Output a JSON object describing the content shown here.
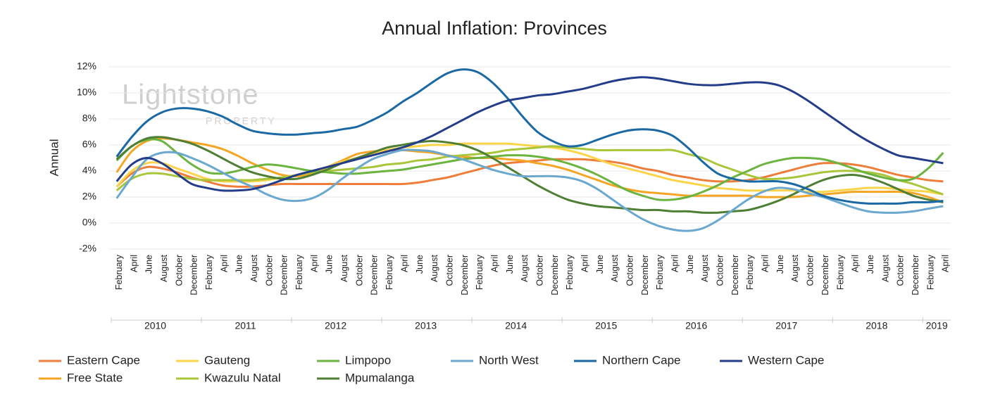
{
  "chart_data": {
    "type": "line",
    "title": "Annual Inflation: Provinces",
    "ylabel": "Annual",
    "watermark": [
      "Lightstone",
      "PROPERTY"
    ],
    "years": [
      "2010",
      "2011",
      "2012",
      "2013",
      "2014",
      "2015",
      "2016",
      "2017",
      "2018",
      "2019"
    ],
    "categories": [
      "February",
      "April",
      "June",
      "August",
      "October",
      "December",
      "February",
      "April",
      "June",
      "August",
      "October",
      "December",
      "February",
      "April",
      "June",
      "August",
      "October",
      "December",
      "February",
      "April",
      "June",
      "August",
      "October",
      "December",
      "February",
      "April",
      "June",
      "August",
      "October",
      "December",
      "February",
      "April",
      "June",
      "August",
      "October",
      "December",
      "February",
      "April",
      "June",
      "August",
      "October",
      "December",
      "February",
      "April",
      "June",
      "August",
      "October",
      "December",
      "February",
      "April",
      "June",
      "August",
      "October",
      "December",
      "February",
      "April"
    ],
    "ylim": [
      -2,
      12
    ],
    "yticks": [
      {
        "value": -2,
        "label": "-2%"
      },
      {
        "value": 0,
        "label": "0%"
      },
      {
        "value": 2,
        "label": "2%"
      },
      {
        "value": 4,
        "label": "4%"
      },
      {
        "value": 6,
        "label": "6%"
      },
      {
        "value": 8,
        "label": "8%"
      },
      {
        "value": 10,
        "label": "10%"
      },
      {
        "value": 12,
        "label": "12%"
      }
    ],
    "grid": true,
    "legend": "bottom",
    "series": [
      {
        "name": "Eastern Cape",
        "color": "#ef7d3a",
        "values": [
          2.8,
          3.8,
          4.3,
          4.2,
          3.9,
          3.5,
          3.2,
          2.9,
          2.8,
          2.8,
          2.9,
          3.0,
          3.0,
          3.0,
          3.0,
          3.0,
          3.0,
          3.0,
          3.0,
          3.0,
          3.1,
          3.3,
          3.5,
          3.8,
          4.1,
          4.4,
          4.6,
          4.7,
          4.8,
          4.9,
          4.9,
          4.9,
          4.8,
          4.7,
          4.5,
          4.2,
          4.0,
          3.7,
          3.5,
          3.3,
          3.2,
          3.2,
          3.3,
          3.5,
          3.8,
          4.1,
          4.4,
          4.6,
          4.6,
          4.5,
          4.3,
          4.0,
          3.7,
          3.5,
          3.3,
          3.2
        ]
      },
      {
        "name": "Free State",
        "color": "#f5a524",
        "values": [
          3.9,
          5.5,
          6.3,
          6.5,
          6.4,
          6.2,
          6.0,
          5.7,
          5.2,
          4.6,
          4.1,
          3.7,
          3.6,
          3.8,
          4.3,
          4.8,
          5.3,
          5.5,
          5.6,
          5.6,
          5.5,
          5.4,
          5.2,
          5.1,
          5.0,
          5.0,
          4.9,
          4.8,
          4.6,
          4.4,
          4.1,
          3.7,
          3.3,
          2.9,
          2.6,
          2.4,
          2.3,
          2.2,
          2.1,
          2.1,
          2.1,
          2.1,
          2.1,
          2.0,
          2.0,
          2.0,
          2.1,
          2.2,
          2.3,
          2.4,
          2.4,
          2.4,
          2.4,
          2.3,
          2.0,
          1.6
        ]
      },
      {
        "name": "Gauteng",
        "color": "#fbd44a",
        "values": [
          2.8,
          4.0,
          4.6,
          4.6,
          4.2,
          3.8,
          3.4,
          3.2,
          3.2,
          3.2,
          3.3,
          3.5,
          3.7,
          4.0,
          4.3,
          4.7,
          5.0,
          5.3,
          5.6,
          5.8,
          5.9,
          6.0,
          6.0,
          6.1,
          6.1,
          6.1,
          6.1,
          6.0,
          5.9,
          5.8,
          5.6,
          5.3,
          4.9,
          4.5,
          4.2,
          3.9,
          3.6,
          3.3,
          3.1,
          2.9,
          2.7,
          2.6,
          2.5,
          2.5,
          2.5,
          2.5,
          2.4,
          2.4,
          2.5,
          2.6,
          2.7,
          2.7,
          2.6,
          2.5,
          2.4,
          2.2
        ]
      },
      {
        "name": "Kwazulu Natal",
        "color": "#a9c63a",
        "values": [
          2.5,
          3.4,
          3.8,
          3.8,
          3.6,
          3.4,
          3.3,
          3.3,
          3.3,
          3.3,
          3.4,
          3.5,
          3.7,
          3.9,
          4.0,
          4.1,
          4.2,
          4.3,
          4.5,
          4.6,
          4.8,
          4.9,
          5.1,
          5.2,
          5.3,
          5.4,
          5.6,
          5.7,
          5.8,
          5.9,
          5.8,
          5.7,
          5.6,
          5.6,
          5.6,
          5.6,
          5.6,
          5.6,
          5.3,
          5.0,
          4.5,
          4.1,
          3.7,
          3.4,
          3.4,
          3.5,
          3.7,
          3.9,
          4.0,
          4.0,
          3.9,
          3.7,
          3.3,
          3.0,
          2.6,
          2.2
        ]
      },
      {
        "name": "Limpopo",
        "color": "#6bb43f",
        "values": [
          4.8,
          5.9,
          6.4,
          6.3,
          5.4,
          4.5,
          3.9,
          3.8,
          4.0,
          4.3,
          4.5,
          4.4,
          4.2,
          4.0,
          3.9,
          3.8,
          3.8,
          3.9,
          4.0,
          4.1,
          4.3,
          4.5,
          4.7,
          4.9,
          5.0,
          5.1,
          5.2,
          5.2,
          5.1,
          4.9,
          4.6,
          4.2,
          3.7,
          3.1,
          2.5,
          2.1,
          1.8,
          1.8,
          2.0,
          2.4,
          2.9,
          3.5,
          4.0,
          4.5,
          4.8,
          5.0,
          5.0,
          4.9,
          4.6,
          4.2,
          3.8,
          3.5,
          3.3,
          3.4,
          4.2,
          5.4
        ]
      },
      {
        "name": "Mpumalanga",
        "color": "#4f7f34",
        "values": [
          4.9,
          5.9,
          6.5,
          6.6,
          6.4,
          6.1,
          5.6,
          5.0,
          4.4,
          3.9,
          3.6,
          3.4,
          3.4,
          3.7,
          4.1,
          4.6,
          5.0,
          5.4,
          5.8,
          6.0,
          6.2,
          6.3,
          6.2,
          6.0,
          5.6,
          5.0,
          4.3,
          3.6,
          2.9,
          2.3,
          1.8,
          1.5,
          1.3,
          1.2,
          1.1,
          1.0,
          1.0,
          0.9,
          0.9,
          0.8,
          0.8,
          0.9,
          1.0,
          1.3,
          1.7,
          2.2,
          2.8,
          3.3,
          3.6,
          3.7,
          3.5,
          3.1,
          2.6,
          2.1,
          1.8,
          1.6
        ]
      },
      {
        "name": "North West",
        "color": "#6aa8cf",
        "values": [
          1.9,
          3.5,
          4.9,
          5.4,
          5.4,
          5.0,
          4.5,
          3.9,
          3.3,
          2.8,
          2.2,
          1.8,
          1.7,
          1.9,
          2.5,
          3.4,
          4.2,
          4.9,
          5.3,
          5.6,
          5.6,
          5.5,
          5.2,
          4.9,
          4.5,
          4.1,
          3.8,
          3.6,
          3.6,
          3.6,
          3.5,
          3.2,
          2.6,
          1.8,
          1.0,
          0.3,
          -0.2,
          -0.5,
          -0.6,
          -0.4,
          0.2,
          1.0,
          1.8,
          2.4,
          2.7,
          2.6,
          2.3,
          2.0,
          1.6,
          1.2,
          0.9,
          0.8,
          0.8,
          0.9,
          1.1,
          1.3
        ]
      },
      {
        "name": "Northern Cape",
        "color": "#1a69a4",
        "values": [
          5.1,
          6.6,
          7.8,
          8.5,
          8.8,
          8.8,
          8.6,
          8.2,
          7.6,
          7.1,
          6.9,
          6.8,
          6.8,
          6.9,
          7.0,
          7.2,
          7.4,
          7.9,
          8.5,
          9.3,
          10.0,
          10.8,
          11.5,
          11.8,
          11.6,
          10.8,
          9.6,
          8.2,
          7.0,
          6.3,
          5.9,
          6.0,
          6.4,
          6.8,
          7.1,
          7.2,
          7.1,
          6.7,
          5.8,
          4.7,
          3.8,
          3.4,
          3.2,
          3.2,
          3.2,
          3.0,
          2.6,
          2.1,
          1.8,
          1.6,
          1.5,
          1.5,
          1.5,
          1.6,
          1.6,
          1.7
        ]
      },
      {
        "name": "Western Cape",
        "color": "#233d8b",
        "values": [
          3.2,
          4.5,
          5.0,
          4.6,
          3.8,
          3.0,
          2.7,
          2.5,
          2.5,
          2.6,
          2.9,
          3.3,
          3.7,
          4.0,
          4.3,
          4.6,
          4.9,
          5.2,
          5.5,
          5.8,
          6.2,
          6.7,
          7.3,
          7.9,
          8.5,
          9.0,
          9.4,
          9.6,
          9.8,
          9.9,
          10.1,
          10.3,
          10.6,
          10.9,
          11.1,
          11.2,
          11.1,
          10.9,
          10.7,
          10.6,
          10.6,
          10.7,
          10.8,
          10.8,
          10.6,
          10.1,
          9.4,
          8.6,
          7.8,
          7.0,
          6.3,
          5.7,
          5.2,
          5.0,
          4.8,
          4.6
        ]
      }
    ]
  }
}
